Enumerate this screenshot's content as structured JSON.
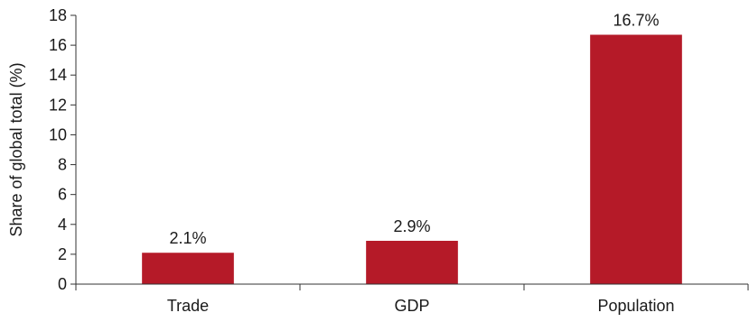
{
  "chart_data": {
    "type": "bar",
    "categories": [
      "Trade",
      "GDP",
      "Population"
    ],
    "values": [
      2.1,
      2.9,
      16.7
    ],
    "data_labels": [
      "2.1%",
      "2.9%",
      "16.7%"
    ],
    "title": "",
    "xlabel": "",
    "ylabel": "Share of global total (%)",
    "ylim": [
      0,
      18
    ],
    "yticks": [
      0,
      2,
      4,
      6,
      8,
      10,
      12,
      14,
      16,
      18
    ],
    "grid": false,
    "legend": "none",
    "colors": {
      "bar": "#b51a28",
      "axis": "#333333",
      "text": "#1a1a1a"
    }
  }
}
